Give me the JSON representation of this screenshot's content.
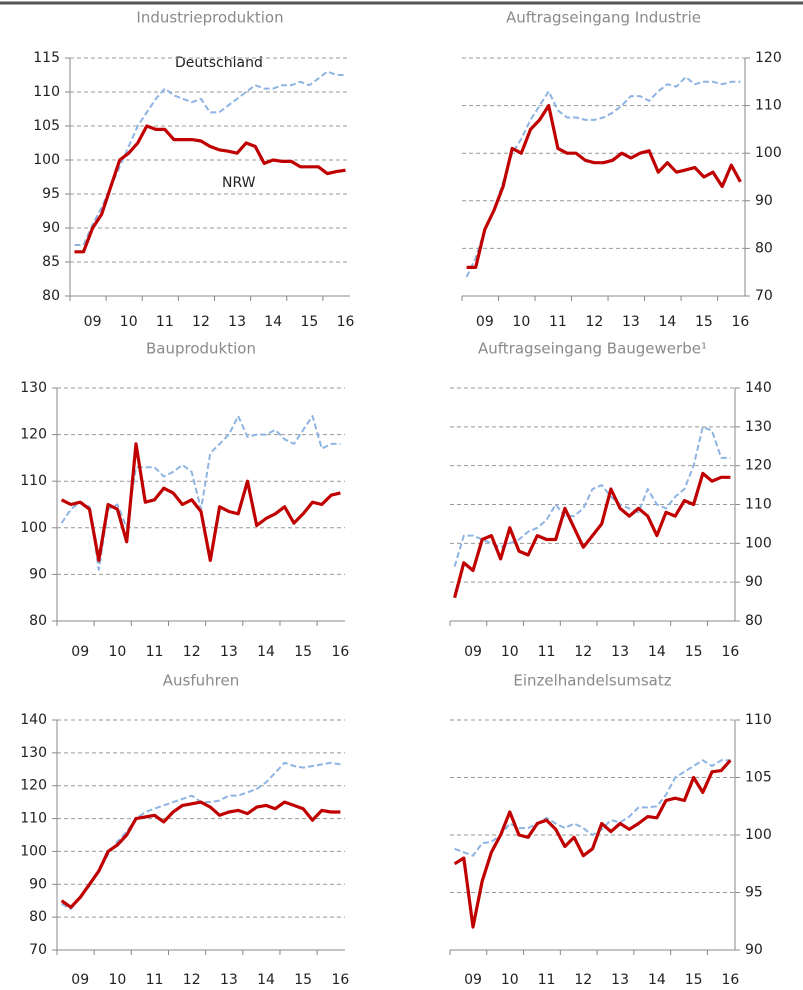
{
  "chart_data": [
    {
      "type": "line",
      "title": "Industrieproduktion",
      "yaxis_position": "left",
      "grid": true,
      "categories": [
        null,
        null,
        "09",
        null,
        null,
        null,
        "10",
        null,
        null,
        null,
        "11",
        null,
        null,
        null,
        "12",
        null,
        null,
        null,
        "13",
        null,
        null,
        null,
        "14",
        null,
        null,
        null,
        "15",
        null,
        null,
        null,
        "16"
      ],
      "ylim": [
        80,
        115
      ],
      "yticks": [
        80,
        85,
        90,
        95,
        100,
        105,
        110,
        115
      ],
      "series": [
        {
          "name": "NRW",
          "color": "#c00000",
          "values": [
            86.5,
            86.5,
            90,
            92,
            96,
            100,
            101,
            102.5,
            105,
            104.5,
            104.5,
            103,
            103,
            103,
            102.8,
            102,
            101.5,
            101.3,
            101,
            102.5,
            102,
            99.5,
            100,
            99.8,
            99.8,
            99,
            99,
            99,
            98,
            98.3,
            98.5
          ]
        },
        {
          "name": "Deutschland",
          "color": "#8db4e2",
          "values": [
            87.5,
            87.5,
            90.5,
            93,
            96,
            99,
            102,
            105,
            107,
            109,
            110.5,
            109.5,
            109,
            108.5,
            109,
            107,
            107,
            108,
            109,
            110,
            111,
            110.5,
            110.5,
            111,
            111,
            111.5,
            111,
            112,
            113,
            112.5,
            112.5
          ]
        }
      ]
    },
    {
      "type": "line",
      "title": "Auftragseingang Industrie",
      "yaxis_position": "right",
      "grid": true,
      "categories": [
        null,
        null,
        "09",
        null,
        null,
        null,
        "10",
        null,
        null,
        null,
        "11",
        null,
        null,
        null,
        "12",
        null,
        null,
        null,
        "13",
        null,
        null,
        null,
        "14",
        null,
        null,
        null,
        "15",
        null,
        null,
        null,
        "16"
      ],
      "ylim": [
        70,
        120
      ],
      "yticks": [
        70,
        80,
        90,
        100,
        110,
        120
      ],
      "series": [
        {
          "color": "#c00000",
          "values": [
            76,
            76,
            84,
            88,
            93,
            101,
            100,
            105,
            107,
            110,
            101,
            100,
            100,
            98.5,
            98,
            98,
            98.5,
            100,
            99,
            100,
            100.5,
            96,
            98,
            96,
            96.5,
            97,
            95,
            96,
            93,
            97.5,
            94
          ]
        },
        {
          "color": "#8db4e2",
          "values": [
            74,
            78,
            84,
            88,
            94,
            100,
            103,
            107,
            110,
            113,
            109,
            107.5,
            107.5,
            107,
            107,
            107.5,
            108.5,
            110,
            112,
            112,
            111,
            113,
            114.5,
            114,
            116,
            114.5,
            115,
            115,
            114.5,
            115,
            115
          ]
        }
      ]
    },
    {
      "type": "line",
      "title": "Bauproduktion",
      "yaxis_position": "left",
      "grid": true,
      "categories": [
        null,
        null,
        "09",
        null,
        null,
        null,
        "10",
        null,
        null,
        null,
        "11",
        null,
        null,
        null,
        "12",
        null,
        null,
        null,
        "13",
        null,
        null,
        null,
        "14",
        null,
        null,
        null,
        "15",
        null,
        null,
        null,
        "16"
      ],
      "ylim": [
        80,
        130
      ],
      "yticks": [
        80,
        90,
        100,
        110,
        120,
        130
      ],
      "series": [
        {
          "color": "#c00000",
          "values": [
            106,
            105,
            105.5,
            104,
            93,
            105,
            104,
            97,
            118,
            105.5,
            106,
            108.5,
            107.5,
            105,
            106,
            103.5,
            93,
            104.5,
            103.5,
            103,
            110,
            100.5,
            102,
            103,
            104.5,
            101,
            103,
            105.5,
            105,
            107,
            107.5
          ]
        },
        {
          "color": "#8db4e2",
          "values": [
            101,
            104,
            105.5,
            104.5,
            91,
            104,
            105,
            100,
            113,
            113,
            113,
            111,
            112,
            113.5,
            112,
            104,
            116,
            118,
            120,
            124,
            119.5,
            120,
            120,
            121,
            119,
            118,
            121,
            124,
            117,
            118,
            118
          ]
        }
      ]
    },
    {
      "type": "line",
      "title": "Auftragseingang Baugewerbe¹",
      "yaxis_position": "right",
      "grid": true,
      "categories": [
        null,
        null,
        "09",
        null,
        null,
        null,
        "10",
        null,
        null,
        null,
        "11",
        null,
        null,
        null,
        "12",
        null,
        null,
        null,
        "13",
        null,
        null,
        null,
        "14",
        null,
        null,
        null,
        "15",
        null,
        null,
        null,
        "16"
      ],
      "ylim": [
        80,
        140
      ],
      "yticks": [
        80,
        90,
        100,
        110,
        120,
        130,
        140
      ],
      "series": [
        {
          "color": "#c00000",
          "values": [
            86,
            95,
            93,
            101,
            102,
            96,
            104,
            98,
            97,
            102,
            101,
            101,
            109,
            104,
            99,
            102,
            105,
            114,
            109,
            107,
            109,
            107,
            102,
            108,
            107,
            111,
            110,
            118,
            116,
            117,
            117
          ]
        },
        {
          "color": "#8db4e2",
          "values": [
            94,
            102,
            102,
            101,
            100,
            99,
            100,
            101,
            103,
            104,
            106,
            110,
            107,
            107,
            109,
            114,
            115,
            112,
            110,
            109,
            108,
            114,
            110,
            109,
            112,
            114,
            120,
            130,
            129,
            122,
            122
          ]
        }
      ]
    },
    {
      "type": "line",
      "title": "Ausfuhren",
      "yaxis_position": "left",
      "grid": true,
      "categories": [
        null,
        null,
        "09",
        null,
        null,
        null,
        "10",
        null,
        null,
        null,
        "11",
        null,
        null,
        null,
        "12",
        null,
        null,
        null,
        "13",
        null,
        null,
        null,
        "14",
        null,
        null,
        null,
        "15",
        null,
        null,
        null,
        "16"
      ],
      "ylim": [
        70,
        140
      ],
      "yticks": [
        70,
        80,
        90,
        100,
        110,
        120,
        130,
        140
      ],
      "series": [
        {
          "color": "#c00000",
          "values": [
            85,
            83,
            86,
            90,
            94,
            100,
            102,
            105,
            110,
            110.5,
            111,
            109,
            112,
            114,
            114.5,
            115,
            113.5,
            111,
            112,
            112.5,
            111.5,
            113.5,
            114,
            113,
            115,
            114,
            113,
            109.5,
            112.5,
            112,
            112
          ]
        },
        {
          "color": "#8db4e2",
          "values": [
            84,
            82.5,
            86,
            89.5,
            94,
            99,
            103,
            106,
            110,
            112,
            113,
            114,
            115,
            116,
            117,
            115,
            115,
            115.5,
            117,
            117,
            118,
            119,
            121,
            124,
            127,
            126,
            125.5,
            126,
            126.5,
            127,
            126.5
          ]
        }
      ]
    },
    {
      "type": "line",
      "title": "Einzelhandelsumsatz",
      "yaxis_position": "right",
      "grid": true,
      "categories": [
        null,
        null,
        "09",
        null,
        null,
        null,
        "10",
        null,
        null,
        null,
        "11",
        null,
        null,
        null,
        "12",
        null,
        null,
        null,
        "13",
        null,
        null,
        null,
        "14",
        null,
        null,
        null,
        "15",
        null,
        null,
        null,
        "16"
      ],
      "ylim": [
        90,
        110
      ],
      "yticks": [
        90,
        95,
        100,
        105,
        110
      ],
      "series": [
        {
          "color": "#c00000",
          "values": [
            97.5,
            98,
            92,
            96,
            98.5,
            100,
            102,
            100,
            99.8,
            101,
            101.3,
            100.5,
            99,
            99.8,
            98.2,
            98.8,
            101,
            100.3,
            101,
            100.5,
            101,
            101.6,
            101.5,
            103,
            103.2,
            103,
            105,
            103.7,
            105.5,
            105.6,
            106.5
          ]
        },
        {
          "color": "#8db4e2",
          "values": [
            98.8,
            98.5,
            98.2,
            99.3,
            99.4,
            100,
            101,
            100.6,
            100.6,
            101,
            101.5,
            101,
            100.6,
            101,
            100.6,
            100,
            100.5,
            101.3,
            101.1,
            101.6,
            102.4,
            102.4,
            102.5,
            103.5,
            105,
            105.5,
            106,
            106.5,
            106,
            106.5,
            106.5
          ]
        }
      ]
    }
  ]
}
